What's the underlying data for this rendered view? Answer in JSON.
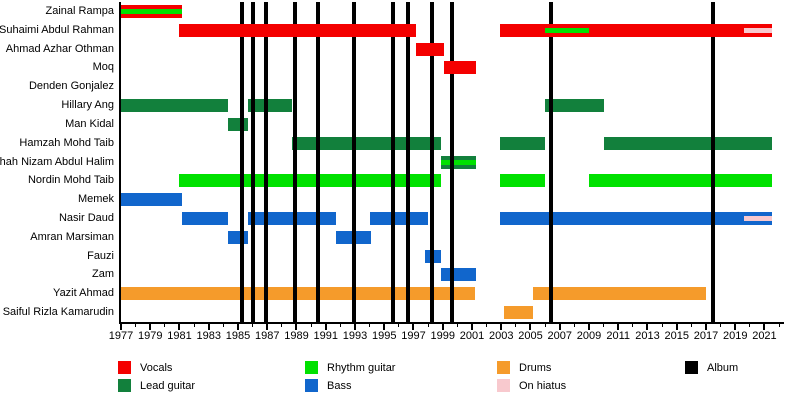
{
  "chart_data": {
    "type": "timeline",
    "title": "",
    "x_axis": {
      "min_year": 1977,
      "max_year": 2022.2,
      "label_years": [
        1977,
        1979,
        1981,
        1983,
        1985,
        1987,
        1989,
        1991,
        1993,
        1995,
        1997,
        1999,
        2001,
        2003,
        2005,
        2007,
        2009,
        2011,
        2013,
        2015,
        2017,
        2019,
        2021
      ],
      "minor_tick_increment": 1
    },
    "roles": {
      "vocals": {
        "label": "Vocals",
        "color": "#f40000"
      },
      "lead_guitar": {
        "label": "Lead guitar",
        "color": "#12803c"
      },
      "rhythm_guitar": {
        "label": "Rhythm guitar",
        "color": "#00e100"
      },
      "bass": {
        "label": "Bass",
        "color": "#1166cc"
      },
      "drums": {
        "label": "Drums",
        "color": "#f59b2b"
      },
      "on_hiatus": {
        "label": "On hiatus",
        "color": "#f8c9ce"
      },
      "album": {
        "label": "Album",
        "color": "#000000"
      }
    },
    "legend": [
      {
        "role": "vocals",
        "col": 0,
        "row": 0
      },
      {
        "role": "lead_guitar",
        "col": 0,
        "row": 1
      },
      {
        "role": "rhythm_guitar",
        "col": 1,
        "row": 0
      },
      {
        "role": "bass",
        "col": 1,
        "row": 1
      },
      {
        "role": "drums",
        "col": 2,
        "row": 0
      },
      {
        "role": "on_hiatus",
        "col": 2,
        "row": 1
      },
      {
        "role": "album",
        "col": 3,
        "row": 0
      }
    ],
    "album_years": [
      1985.3,
      1986.0,
      1986.9,
      1988.9,
      1990.5,
      1992.9,
      1995.6,
      1996.6,
      1998.3,
      1999.6,
      2006.4,
      2017.5
    ],
    "members": [
      {
        "name": "Zainal Rampa",
        "bars": [
          {
            "start": 1977,
            "end": 1981.2,
            "role": "vocals",
            "stripes": [
              {
                "role": "rhythm_guitar",
                "start": 1977,
                "end": 1981.2
              }
            ]
          }
        ]
      },
      {
        "name": "Suhaimi Abdul Rahman",
        "bars": [
          {
            "start": 1981,
            "end": 1997.2,
            "role": "vocals"
          },
          {
            "start": 2002.9,
            "end": 2021.5,
            "role": "vocals",
            "stripes": [
              {
                "role": "rhythm_guitar",
                "start": 2006,
                "end": 2009
              },
              {
                "role": "on_hiatus",
                "start": 2019.6,
                "end": 2021.5
              }
            ]
          }
        ]
      },
      {
        "name": "Ahmad Azhar Othman",
        "bars": [
          {
            "start": 1997.2,
            "end": 1999.1,
            "role": "vocals"
          }
        ]
      },
      {
        "name": "Moq",
        "bars": [
          {
            "start": 1999.1,
            "end": 2001.3,
            "role": "vocals"
          }
        ]
      },
      {
        "name": "Denden Gonjalez",
        "bars": []
      },
      {
        "name": "Hillary Ang",
        "bars": [
          {
            "start": 1977,
            "end": 1984.3,
            "role": "lead_guitar"
          },
          {
            "start": 1985.7,
            "end": 1988.7,
            "role": "lead_guitar"
          },
          {
            "start": 2006,
            "end": 2010,
            "role": "lead_guitar"
          }
        ]
      },
      {
        "name": "Man Kidal",
        "bars": [
          {
            "start": 1984.3,
            "end": 1985.7,
            "role": "lead_guitar"
          }
        ]
      },
      {
        "name": "Hamzah Mohd Taib",
        "bars": [
          {
            "start": 1988.7,
            "end": 1998.9,
            "role": "lead_guitar"
          },
          {
            "start": 2002.9,
            "end": 2006,
            "role": "lead_guitar"
          },
          {
            "start": 2010,
            "end": 2021.5,
            "role": "lead_guitar"
          }
        ]
      },
      {
        "name": "Shah Nizam Abdul Halim",
        "bars": [
          {
            "start": 1998.9,
            "end": 2001.3,
            "role": "lead_guitar",
            "stripes": [
              {
                "role": "rhythm_guitar",
                "start": 1998.9,
                "end": 2001.3
              }
            ]
          }
        ]
      },
      {
        "name": "Nordin Mohd Taib",
        "bars": [
          {
            "start": 1981,
            "end": 1998.9,
            "role": "rhythm_guitar"
          },
          {
            "start": 2002.9,
            "end": 2006,
            "role": "rhythm_guitar"
          },
          {
            "start": 2009,
            "end": 2021.5,
            "role": "rhythm_guitar"
          }
        ]
      },
      {
        "name": "Memek",
        "bars": [
          {
            "start": 1977,
            "end": 1981.2,
            "role": "bass"
          }
        ]
      },
      {
        "name": "Nasir Daud",
        "bars": [
          {
            "start": 1981.2,
            "end": 1984.3,
            "role": "bass"
          },
          {
            "start": 1985.7,
            "end": 1991.7,
            "role": "bass"
          },
          {
            "start": 1994,
            "end": 1998,
            "role": "bass"
          },
          {
            "start": 2002.9,
            "end": 2021.5,
            "role": "bass",
            "stripes": [
              {
                "role": "on_hiatus",
                "start": 2019.6,
                "end": 2021.5
              }
            ]
          }
        ]
      },
      {
        "name": "Amran Marsiman",
        "bars": [
          {
            "start": 1984.3,
            "end": 1985.7,
            "role": "bass"
          },
          {
            "start": 1991.7,
            "end": 1994.1,
            "role": "bass"
          }
        ]
      },
      {
        "name": "Fauzi",
        "bars": [
          {
            "start": 1997.8,
            "end": 1998.9,
            "role": "bass"
          }
        ]
      },
      {
        "name": "Zam",
        "bars": [
          {
            "start": 1998.9,
            "end": 2001.3,
            "role": "bass"
          }
        ]
      },
      {
        "name": "Yazit Ahmad",
        "bars": [
          {
            "start": 1977,
            "end": 2001.2,
            "role": "drums"
          },
          {
            "start": 2005.2,
            "end": 2017,
            "role": "drums"
          }
        ]
      },
      {
        "name": "Saiful Rizla Kamarudin",
        "bars": [
          {
            "start": 2003.2,
            "end": 2005.2,
            "role": "drums"
          }
        ]
      }
    ]
  }
}
